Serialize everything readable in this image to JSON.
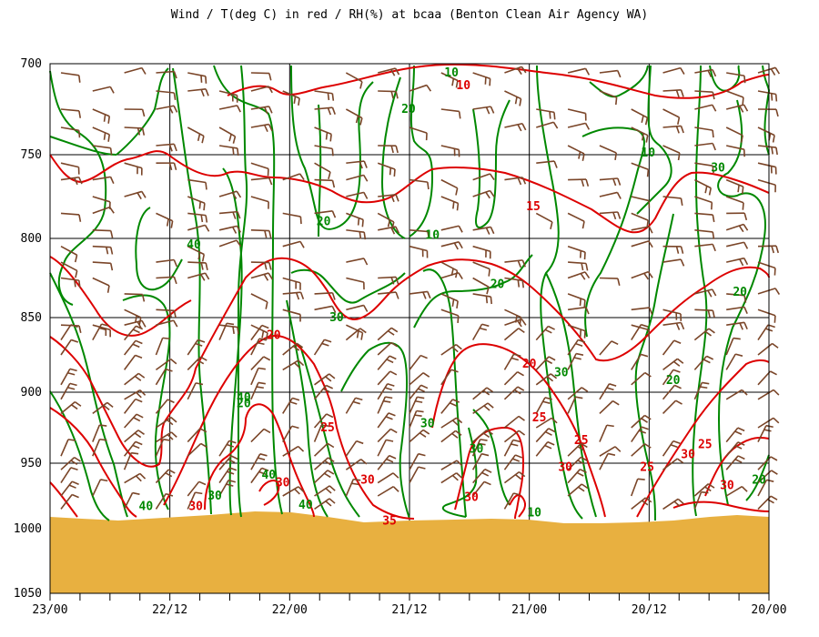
{
  "chart_data": {
    "type": "meteogram",
    "title": "Wind / T(deg C) in red / RH(%) at bcaa (Benton Clean Air Agency WA)",
    "xlabel": "",
    "ylabel": "",
    "x_ticks": [
      "23/00",
      "22/12",
      "22/00",
      "21/12",
      "21/00",
      "20/12",
      "20/00"
    ],
    "y_ticks": [
      700,
      750,
      800,
      850,
      900,
      950,
      1000,
      1050
    ],
    "ylim": [
      700,
      1050
    ],
    "colors": {
      "temperature": "#dd0000",
      "rh": "#008800",
      "wind": "#7a4528",
      "ground": "#e8b040",
      "grid": "#000000"
    },
    "temperature_labels": [
      {
        "value": "10",
        "x_hours": 30.6,
        "p": 712
      },
      {
        "value": "15",
        "x_hours": 23.6,
        "p": 781
      },
      {
        "value": "20",
        "x_hours": 24.0,
        "p": 881
      },
      {
        "value": "20",
        "x_hours": 49.6,
        "p": 862
      },
      {
        "value": "25",
        "x_hours": 12.2,
        "p": 953
      },
      {
        "value": "25",
        "x_hours": 44.2,
        "p": 925
      },
      {
        "value": "25",
        "x_hours": 23.0,
        "p": 918
      },
      {
        "value": "25",
        "x_hours": 18.8,
        "p": 934
      },
      {
        "value": "25",
        "x_hours": 6.4,
        "p": 937
      },
      {
        "value": "30",
        "x_hours": 57.4,
        "p": 983
      },
      {
        "value": "30",
        "x_hours": 48.7,
        "p": 965
      },
      {
        "value": "30",
        "x_hours": 40.2,
        "p": 963
      },
      {
        "value": "30",
        "x_hours": 29.8,
        "p": 976
      },
      {
        "value": "30",
        "x_hours": 20.4,
        "p": 953
      },
      {
        "value": "30",
        "x_hours": 8.1,
        "p": 944
      },
      {
        "value": "30",
        "x_hours": 4.2,
        "p": 967
      },
      {
        "value": "35",
        "x_hours": 38.0,
        "p": 994
      }
    ],
    "rh_labels": [
      {
        "value": "10",
        "x_hours": 31.8,
        "p": 705
      },
      {
        "value": "20",
        "x_hours": 36.1,
        "p": 725
      },
      {
        "value": "10",
        "x_hours": 12.1,
        "p": 749
      },
      {
        "value": "30",
        "x_hours": 5.1,
        "p": 758
      },
      {
        "value": "10",
        "x_hours": 33.7,
        "p": 798
      },
      {
        "value": "20",
        "x_hours": 27.2,
        "p": 829
      },
      {
        "value": "20",
        "x_hours": 2.9,
        "p": 834
      },
      {
        "value": "40",
        "x_hours": 57.6,
        "p": 804
      },
      {
        "value": "20",
        "x_hours": 44.6,
        "p": 790
      },
      {
        "value": "30",
        "x_hours": 43.3,
        "p": 850
      },
      {
        "value": "20",
        "x_hours": 52.6,
        "p": 908
      },
      {
        "value": "30",
        "x_hours": 20.8,
        "p": 887
      },
      {
        "value": "20",
        "x_hours": 9.6,
        "p": 892
      },
      {
        "value": "30",
        "x_hours": 34.2,
        "p": 922
      },
      {
        "value": "40",
        "x_hours": 52.6,
        "p": 904
      },
      {
        "value": "30",
        "x_hours": 29.3,
        "p": 940
      },
      {
        "value": "30",
        "x_hours": 55.5,
        "p": 975
      },
      {
        "value": "10",
        "x_hours": 23.5,
        "p": 988
      },
      {
        "value": "40",
        "x_hours": 50.1,
        "p": 959
      },
      {
        "value": "40",
        "x_hours": 46.4,
        "p": 982
      },
      {
        "value": "20",
        "x_hours": 1.0,
        "p": 963
      },
      {
        "value": "40",
        "x_hours": 62.4,
        "p": 983
      }
    ]
  }
}
